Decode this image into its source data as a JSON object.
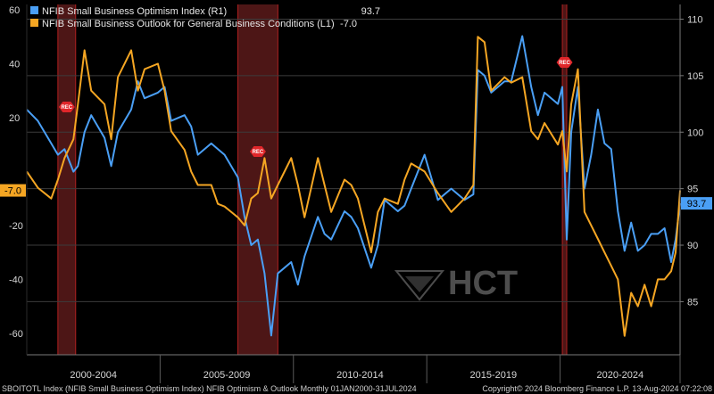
{
  "chart_data": {
    "type": "line",
    "x_axis": {
      "period_labels": [
        "2000-2004",
        "2005-2009",
        "2010-2014",
        "2015-2019",
        "2020-2024"
      ],
      "range": [
        "2000-01",
        "2024-07"
      ]
    },
    "left_axis": {
      "range": [
        -68,
        62
      ],
      "ticks": [
        60,
        40,
        20,
        -20,
        -40,
        -60
      ],
      "current_label": "-7.0",
      "current_value": -7.0
    },
    "right_axis": {
      "range": [
        80.3,
        111.3
      ],
      "ticks": [
        110,
        105,
        100,
        95,
        90,
        85
      ],
      "current_label": "93.7",
      "current_value": 93.7
    },
    "recessions": [
      {
        "start": "2001-03",
        "end": "2001-11",
        "label": "REC"
      },
      {
        "start": "2007-12",
        "end": "2009-06",
        "label": "REC"
      },
      {
        "start": "2020-02",
        "end": "2020-04",
        "label": "REC"
      }
    ],
    "series": [
      {
        "name": "NFIB Small Business Optimism Index  (R1)",
        "legend_value": "93.7",
        "axis": "right",
        "color": "#4a9ff5",
        "points": [
          [
            "2000-01",
            102
          ],
          [
            "2000-06",
            101
          ],
          [
            "2000-12",
            99
          ],
          [
            "2001-03",
            98
          ],
          [
            "2001-06",
            98.5
          ],
          [
            "2001-10",
            96.5
          ],
          [
            "2001-12",
            97
          ],
          [
            "2002-03",
            100
          ],
          [
            "2002-06",
            101.5
          ],
          [
            "2002-12",
            99.5
          ],
          [
            "2003-03",
            97
          ],
          [
            "2003-06",
            100
          ],
          [
            "2003-12",
            102
          ],
          [
            "2004-03",
            104.5
          ],
          [
            "2004-06",
            103
          ],
          [
            "2004-12",
            103.5
          ],
          [
            "2005-03",
            104
          ],
          [
            "2005-06",
            101
          ],
          [
            "2005-12",
            101.5
          ],
          [
            "2006-03",
            100.5
          ],
          [
            "2006-06",
            98
          ],
          [
            "2006-12",
            99
          ],
          [
            "2007-03",
            98.5
          ],
          [
            "2007-06",
            98
          ],
          [
            "2007-12",
            96
          ],
          [
            "2008-03",
            92.5
          ],
          [
            "2008-06",
            90
          ],
          [
            "2008-09",
            90.5
          ],
          [
            "2008-12",
            87.5
          ],
          [
            "2009-03",
            82
          ],
          [
            "2009-06",
            87.5
          ],
          [
            "2009-12",
            88.5
          ],
          [
            "2010-03",
            86.5
          ],
          [
            "2010-06",
            89
          ],
          [
            "2010-12",
            92.5
          ],
          [
            "2011-03",
            91
          ],
          [
            "2011-06",
            90.5
          ],
          [
            "2011-12",
            93
          ],
          [
            "2012-03",
            92.5
          ],
          [
            "2012-06",
            91.5
          ],
          [
            "2012-12",
            88
          ],
          [
            "2013-03",
            90
          ],
          [
            "2013-06",
            94
          ],
          [
            "2013-12",
            93
          ],
          [
            "2014-03",
            93.5
          ],
          [
            "2014-06",
            95
          ],
          [
            "2014-12",
            98
          ],
          [
            "2015-06",
            94
          ],
          [
            "2015-12",
            95
          ],
          [
            "2016-06",
            94
          ],
          [
            "2016-10",
            94.5
          ],
          [
            "2016-12",
            105.5
          ],
          [
            "2017-03",
            105
          ],
          [
            "2017-06",
            103.5
          ],
          [
            "2017-12",
            104.5
          ],
          [
            "2018-03",
            104.5
          ],
          [
            "2018-08",
            108.5
          ],
          [
            "2018-12",
            104
          ],
          [
            "2019-03",
            101.5
          ],
          [
            "2019-06",
            103.5
          ],
          [
            "2019-12",
            102.5
          ],
          [
            "2020-02",
            104
          ],
          [
            "2020-04",
            90.5
          ],
          [
            "2020-06",
            100
          ],
          [
            "2020-09",
            104
          ],
          [
            "2020-12",
            95
          ],
          [
            "2021-03",
            98
          ],
          [
            "2021-06",
            102
          ],
          [
            "2021-09",
            99
          ],
          [
            "2021-12",
            98.5
          ],
          [
            "2022-03",
            93
          ],
          [
            "2022-06",
            89.5
          ],
          [
            "2022-09",
            92
          ],
          [
            "2022-12",
            89.5
          ],
          [
            "2023-03",
            90
          ],
          [
            "2023-06",
            91
          ],
          [
            "2023-09",
            91
          ],
          [
            "2023-12",
            91.5
          ],
          [
            "2024-03",
            88.5
          ],
          [
            "2024-05",
            90.5
          ],
          [
            "2024-07",
            93.7
          ]
        ]
      },
      {
        "name": "NFIB Small Business Outlook for General Business Conditions (L1)",
        "legend_value": "-7.0",
        "axis": "left",
        "color": "#f5a623",
        "points": [
          [
            "2000-01",
            0
          ],
          [
            "2000-06",
            -6
          ],
          [
            "2000-12",
            -10
          ],
          [
            "2001-03",
            -3
          ],
          [
            "2001-06",
            5
          ],
          [
            "2001-10",
            12
          ],
          [
            "2001-12",
            25
          ],
          [
            "2002-03",
            45
          ],
          [
            "2002-06",
            30
          ],
          [
            "2002-12",
            25
          ],
          [
            "2003-03",
            12
          ],
          [
            "2003-06",
            35
          ],
          [
            "2003-12",
            45
          ],
          [
            "2004-03",
            30
          ],
          [
            "2004-06",
            38
          ],
          [
            "2004-12",
            40
          ],
          [
            "2005-03",
            30
          ],
          [
            "2005-06",
            15
          ],
          [
            "2005-12",
            8
          ],
          [
            "2006-03",
            0
          ],
          [
            "2006-06",
            -5
          ],
          [
            "2006-12",
            -5
          ],
          [
            "2007-03",
            -12
          ],
          [
            "2007-06",
            -13
          ],
          [
            "2007-12",
            -17
          ],
          [
            "2008-03",
            -20
          ],
          [
            "2008-06",
            -10
          ],
          [
            "2008-09",
            -8
          ],
          [
            "2008-12",
            5
          ],
          [
            "2009-03",
            -10
          ],
          [
            "2009-06",
            -5
          ],
          [
            "2009-12",
            5
          ],
          [
            "2010-03",
            -5
          ],
          [
            "2010-06",
            -17
          ],
          [
            "2010-12",
            5
          ],
          [
            "2011-03",
            -5
          ],
          [
            "2011-06",
            -15
          ],
          [
            "2011-12",
            -3
          ],
          [
            "2012-03",
            -5
          ],
          [
            "2012-06",
            -10
          ],
          [
            "2012-12",
            -30
          ],
          [
            "2013-03",
            -15
          ],
          [
            "2013-06",
            -10
          ],
          [
            "2013-12",
            -12
          ],
          [
            "2014-03",
            -3
          ],
          [
            "2014-06",
            3
          ],
          [
            "2014-12",
            0
          ],
          [
            "2015-06",
            -8
          ],
          [
            "2015-12",
            -15
          ],
          [
            "2016-06",
            -10
          ],
          [
            "2016-10",
            -5
          ],
          [
            "2016-12",
            50
          ],
          [
            "2017-03",
            48
          ],
          [
            "2017-06",
            30
          ],
          [
            "2017-12",
            35
          ],
          [
            "2018-03",
            33
          ],
          [
            "2018-08",
            35
          ],
          [
            "2018-12",
            15
          ],
          [
            "2019-03",
            12
          ],
          [
            "2019-06",
            18
          ],
          [
            "2019-12",
            10
          ],
          [
            "2020-02",
            15
          ],
          [
            "2020-04",
            0
          ],
          [
            "2020-06",
            25
          ],
          [
            "2020-09",
            38
          ],
          [
            "2020-12",
            -15
          ],
          [
            "2021-03",
            -20
          ],
          [
            "2021-06",
            -25
          ],
          [
            "2021-09",
            -30
          ],
          [
            "2021-12",
            -35
          ],
          [
            "2022-03",
            -40
          ],
          [
            "2022-06",
            -61
          ],
          [
            "2022-09",
            -45
          ],
          [
            "2022-12",
            -50
          ],
          [
            "2023-03",
            -42
          ],
          [
            "2023-06",
            -50
          ],
          [
            "2023-09",
            -40
          ],
          [
            "2023-12",
            -40
          ],
          [
            "2024-03",
            -37
          ],
          [
            "2024-05",
            -30
          ],
          [
            "2024-07",
            -7.0
          ]
        ]
      }
    ],
    "watermark": "HCT",
    "footer": {
      "left": "SBOITOTL Index (NFIB Small Business Optimism Index) NFIB Optimism & Outlook  Monthly 01JAN2000-31JUL2024",
      "right": "Copyright© 2024 Bloomberg Finance L.P.     13-Aug-2024 07:22:08"
    }
  }
}
